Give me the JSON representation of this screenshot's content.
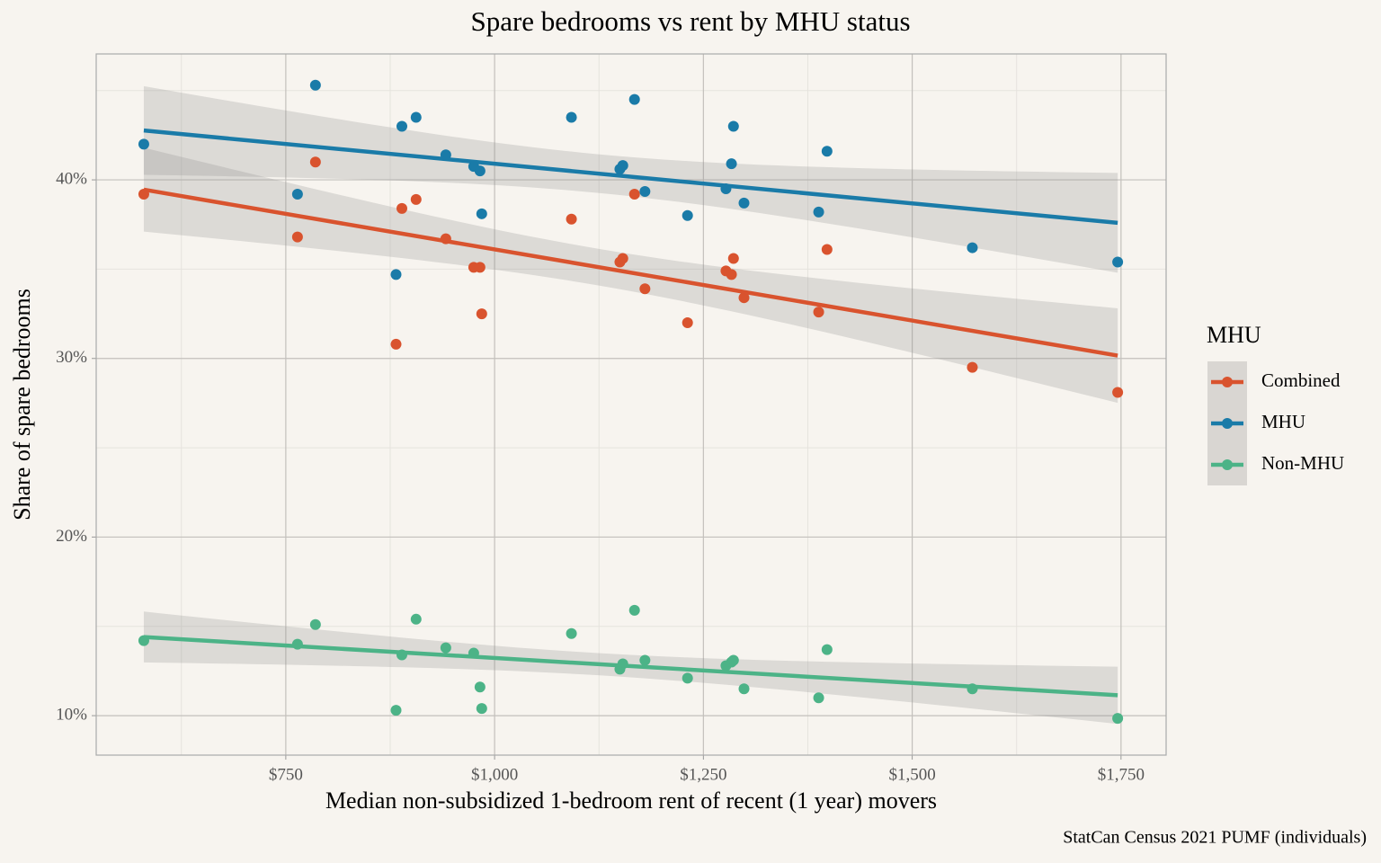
{
  "chart_data": {
    "type": "scatter",
    "title": "Spare bedrooms vs rent by MHU status",
    "x_label": "Median non-subsidized 1-bedroom rent of recent (1 year) movers",
    "y_label": "Share of spare bedrooms",
    "caption": "StatCan Census 2021 PUMF (individuals)",
    "legend_title": "MHU",
    "legend_position": "right",
    "trend": "linear",
    "grid": true,
    "xlim": [
      523,
      1804
    ],
    "ylim": [
      7.79,
      47.05
    ],
    "xticks": [
      {
        "value": 750,
        "label": "$750"
      },
      {
        "value": 1000,
        "label": "$1,000"
      },
      {
        "value": 1250,
        "label": "$1,250"
      },
      {
        "value": 1500,
        "label": "$1,500"
      },
      {
        "value": 1750,
        "label": "$1,750"
      }
    ],
    "yticks": [
      {
        "value": 10,
        "label": "10%"
      },
      {
        "value": 20,
        "label": "20%"
      },
      {
        "value": 30,
        "label": "30%"
      },
      {
        "value": 40,
        "label": "40%"
      }
    ],
    "xminorticks": [
      625,
      875,
      1125,
      1375,
      1625
    ],
    "yminorticks": [
      15,
      25,
      35,
      45
    ],
    "x": [
      580,
      764,
      785.5,
      882,
      889,
      906,
      941.6,
      975,
      982.5,
      984.6,
      1092,
      1150,
      1153.5,
      1167.5,
      1180,
      1231,
      1277,
      1283.6,
      1286,
      1298.6,
      1388,
      1398,
      1572,
      1746
    ],
    "series": [
      {
        "name": "Combined",
        "color": "#d9532e",
        "values": [
          39.2,
          36.8,
          41.0,
          30.8,
          38.4,
          38.9,
          36.7,
          35.1,
          35.1,
          32.5,
          37.8,
          35.4,
          35.6,
          39.2,
          33.9,
          32.0,
          34.9,
          34.7,
          35.6,
          33.4,
          32.6,
          36.1,
          29.5,
          28.1
        ]
      },
      {
        "name": "MHU",
        "color": "#1a7ba8",
        "values": [
          42.0,
          39.2,
          45.3,
          34.7,
          43.0,
          43.5,
          41.4,
          40.75,
          40.5,
          38.1,
          43.5,
          40.6,
          40.8,
          44.5,
          39.35,
          38.0,
          39.5,
          40.9,
          43.0,
          38.7,
          38.2,
          41.6,
          36.2,
          35.4
        ]
      },
      {
        "name": "Non-MHU",
        "color": "#4cb387",
        "values": [
          14.2,
          14.0,
          15.1,
          10.3,
          13.4,
          15.4,
          13.8,
          13.5,
          11.6,
          10.4,
          14.6,
          12.6,
          12.9,
          15.9,
          13.1,
          12.1,
          12.8,
          13.0,
          13.1,
          11.5,
          11.0,
          13.7,
          11.5,
          9.85
        ]
      }
    ]
  }
}
